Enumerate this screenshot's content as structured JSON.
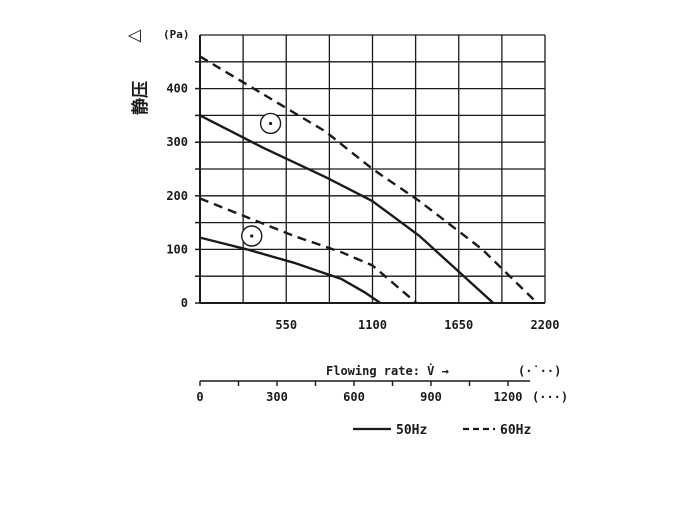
{
  "chart_data": {
    "type": "line",
    "ylabel": "静压",
    "ylabel_symbol": "△",
    "yunit": "(Pa)",
    "ylim": [
      0,
      500
    ],
    "yticks": [
      0,
      100,
      200,
      300,
      400
    ],
    "xlim": [
      0,
      2200
    ],
    "xticks": [
      550,
      1100,
      1650,
      2200
    ],
    "xlabel": "Flowing rate: V̇ →",
    "xunit_primary": "(·˙··)",
    "secondary_axis": {
      "ticks": [
        0,
        300,
        600,
        900,
        1200
      ],
      "unit": "(···)"
    },
    "grid": true,
    "legend_position": "bottom-right",
    "series": [
      {
        "name": "50Hz",
        "style": "solid",
        "x": [
          0,
          400,
          800,
          1100,
          1400,
          1870
        ],
        "y": [
          350,
          290,
          235,
          190,
          125,
          0
        ]
      },
      {
        "name": "60Hz",
        "style": "dashed",
        "x": [
          0,
          400,
          800,
          1100,
          1400,
          1800,
          2150
        ],
        "y": [
          460,
          390,
          320,
          250,
          190,
          100,
          0
        ]
      },
      {
        "name": "50Hz",
        "style": "solid",
        "x": [
          0,
          300,
          600,
          900,
          1050,
          1150
        ],
        "y": [
          122,
          100,
          75,
          45,
          20,
          0
        ]
      },
      {
        "name": "60Hz",
        "style": "dashed",
        "x": [
          0,
          300,
          600,
          900,
          1100,
          1380
        ],
        "y": [
          195,
          160,
          125,
          95,
          70,
          0
        ]
      }
    ],
    "operating_points": [
      {
        "x": 450,
        "y": 335
      },
      {
        "x": 330,
        "y": 125
      }
    ]
  }
}
